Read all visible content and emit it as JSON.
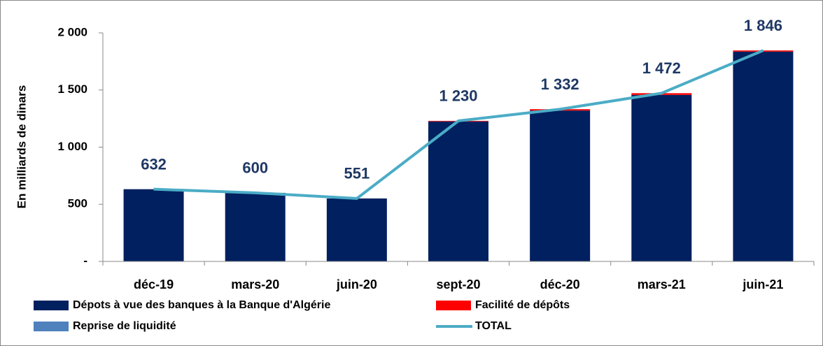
{
  "chart_data": {
    "type": "bar",
    "stacked": true,
    "y_label": "En milliards de dinars",
    "categories": [
      "déc-19",
      "mars-20",
      "juin-20",
      "sept-20",
      "déc-20",
      "mars-21",
      "juin-21"
    ],
    "series": [
      {
        "name": "Dépots à vue des banques à la Banque d'Algérie",
        "color": "#002060",
        "values": [
          632,
          600,
          551,
          1225,
          1320,
          1457,
          1836
        ]
      },
      {
        "name": "Facilité de dépôts",
        "color": "#ff0000",
        "values": [
          0,
          0,
          0,
          5,
          12,
          15,
          10
        ]
      },
      {
        "name": "Reprise de liquidité",
        "color": "#4f81bd",
        "values": [
          0,
          0,
          0,
          0,
          0,
          0,
          0
        ]
      },
      {
        "name": "TOTAL",
        "type": "line",
        "color": "#4bacc6",
        "values": [
          632,
          600,
          551,
          1230,
          1332,
          1472,
          1846
        ],
        "value_labels": [
          "632",
          "600",
          "551",
          "1 230",
          "1 332",
          "1 472",
          "1 846"
        ]
      }
    ],
    "ylim": [
      0,
      2000
    ],
    "yticks": [
      {
        "value": 0,
        "label": "-"
      },
      500,
      {
        "value": 1000,
        "label": "1 000"
      },
      {
        "value": 1500,
        "label": "1 500"
      },
      {
        "value": 2000,
        "label": "2 000"
      }
    ],
    "grid": false
  }
}
